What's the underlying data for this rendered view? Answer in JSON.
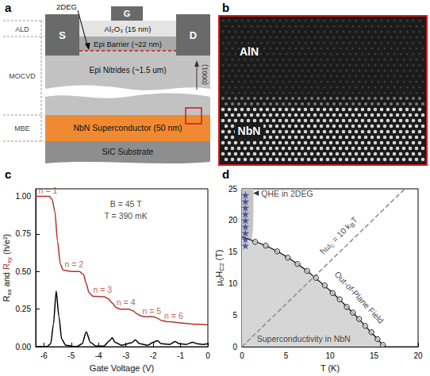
{
  "diagram": {
    "label": "a",
    "contacts": {
      "source": "S",
      "drain": "D",
      "gate": "G"
    },
    "layers": {
      "oxide": "Al₂O₃ (15 nm)",
      "barrier": "Epi Barrier (~22 nm)",
      "nitrides": "Epi Nitrides (~1.5 um)",
      "superconductor": "NbN Superconductor (50 nm)",
      "substrate": "SiC Substrate"
    },
    "channel": "2DEG",
    "growth": [
      "ALD",
      "MOCVD",
      "MBE"
    ],
    "direction": "(0001)"
  },
  "micrograph": {
    "label": "b",
    "regions": [
      "AlN",
      "NbN"
    ]
  },
  "chart_data": [
    {
      "label": "c",
      "type": "line",
      "xlabel": "Gate Voltage (V)",
      "ylabel": [
        {
          "text": "R"
        },
        {
          "text": "xx",
          "sub": true
        },
        {
          "text": " and "
        },
        {
          "text": "R",
          "color": "#b3312c"
        },
        {
          "text": "xy",
          "sub": true,
          "color": "#b3312c"
        },
        {
          "text": " (h/e²)"
        }
      ],
      "xlim": [
        -6.3,
        0
      ],
      "xticks": [
        -6,
        -5,
        -4,
        -3,
        -2,
        -1,
        0
      ],
      "ylim": [
        0,
        1.05
      ],
      "yticks": [
        {
          "value": 0,
          "label": "0.00"
        },
        {
          "value": 0.25,
          "label": "0.25"
        },
        {
          "value": 0.5,
          "label": "0.50"
        },
        {
          "value": 0.75,
          "label": "0.75"
        },
        {
          "value": 1,
          "label": "1.00"
        }
      ],
      "grid": false,
      "series": [
        {
          "color": "#000000",
          "x": [
            -6.3,
            -5.9,
            -5.75,
            -5.65,
            -5.55,
            -5.45,
            -5.35,
            -5.2,
            -4.8,
            -4.6,
            -4.45,
            -4.3,
            -4.1,
            -3.8,
            -3.6,
            -3.5,
            -3.4,
            -3.15,
            -2.8,
            -2.65,
            -2.5,
            -2.2,
            -2.0,
            -1.85,
            -1.7,
            -1.4,
            -1.2,
            -1.05,
            -0.8,
            -0.55,
            -0.4,
            -0.2,
            0
          ],
          "values": [
            0,
            0,
            0.02,
            0.15,
            0.37,
            0.2,
            0.05,
            0.01,
            0,
            0.02,
            0.1,
            0.03,
            0.005,
            0.005,
            0.04,
            0.06,
            0.03,
            0.01,
            0.025,
            0.045,
            0.02,
            0.01,
            0.03,
            0.04,
            0.02,
            0.015,
            0.035,
            0.02,
            0.015,
            0.03,
            0.02,
            0.015,
            0.02
          ]
        },
        {
          "color": "#b3312c",
          "x": [
            -6.3,
            -5.8,
            -5.7,
            -5.6,
            -5.5,
            -5.4,
            -5.3,
            -5.0,
            -4.7,
            -4.55,
            -4.45,
            -4.35,
            -4.2,
            -3.8,
            -3.65,
            -3.5,
            -3.35,
            -3.2,
            -2.9,
            -2.75,
            -2.6,
            -2.45,
            -2.3,
            -2.0,
            -1.85,
            -1.7,
            -1.5,
            -1.3,
            -1.1,
            -0.8,
            -0.5,
            -0.2,
            0
          ],
          "values": [
            1.0,
            1.0,
            0.98,
            0.9,
            0.7,
            0.55,
            0.51,
            0.5,
            0.5,
            0.48,
            0.42,
            0.36,
            0.335,
            0.333,
            0.32,
            0.29,
            0.26,
            0.25,
            0.25,
            0.24,
            0.22,
            0.205,
            0.2,
            0.2,
            0.19,
            0.175,
            0.167,
            0.165,
            0.16,
            0.155,
            0.15,
            0.148,
            0.145
          ]
        }
      ],
      "annotations": [
        {
          "text": "B = 45 T",
          "x": -3.0,
          "y": 0.95
        },
        {
          "text": "T = 390 mK",
          "x": -3.0,
          "y": 0.87
        },
        {
          "text": "n = 1",
          "x": -5.85,
          "y": 1.04,
          "color": "#b3312c"
        },
        {
          "text": "n = 2",
          "x": -4.9,
          "y": 0.55,
          "color": "#b3312c"
        },
        {
          "text": "n = 3",
          "x": -3.85,
          "y": 0.38,
          "color": "#b3312c"
        },
        {
          "text": "n = 4",
          "x": -3.0,
          "y": 0.295,
          "color": "#b3312c"
        },
        {
          "text": "n = 5",
          "x": -2.05,
          "y": 0.24,
          "color": "#b3312c"
        },
        {
          "text": "n = 6",
          "x": -1.25,
          "y": 0.205,
          "color": "#b3312c"
        }
      ]
    },
    {
      "label": "d",
      "type": "line",
      "xlabel": "T (K)",
      "ylabel": [
        {
          "text": "μ"
        },
        {
          "text": "0",
          "sub": true
        },
        {
          "text": "H"
        },
        {
          "text": "C2",
          "sub": true
        },
        {
          "text": " (T)"
        }
      ],
      "xlim": [
        0,
        20
      ],
      "xticks": [
        0,
        5,
        10,
        15,
        20
      ],
      "ylim": [
        0,
        25
      ],
      "yticks": [
        0,
        5,
        10,
        15,
        20,
        25
      ],
      "grid": false,
      "series": [
        {
          "type": "region",
          "color": "#c4c4c4",
          "x": [
            0,
            0.35,
            0.75,
            1.05,
            1.25,
            1.3,
            1.3,
            0
          ],
          "values": [
            13.2,
            13.6,
            14.6,
            16.2,
            18.5,
            21,
            25,
            25
          ]
        },
        {
          "type": "area",
          "color": "#d6d6d6",
          "x": [
            0,
            1,
            2,
            3,
            4,
            5,
            6,
            7,
            8,
            9,
            10,
            11,
            12,
            13,
            14,
            15,
            16,
            16.3
          ],
          "values": [
            17.4,
            16.9,
            16.4,
            15.8,
            15.1,
            14.3,
            13.4,
            12.4,
            11.3,
            10.1,
            8.9,
            7.6,
            6.2,
            4.8,
            3.3,
            1.8,
            0.3,
            0
          ]
        },
        {
          "type": "line",
          "line_style": "dashed",
          "color": "#8c8c8c",
          "x": [
            0,
            18.5
          ],
          "values": [
            0,
            25
          ]
        },
        {
          "type": "scatter",
          "marker": "circle",
          "color": "#000000",
          "x": [
            1.5,
            2.7,
            4,
            5.2,
            6.3,
            7.4,
            8.4,
            9.4,
            10.3,
            11.1,
            11.9,
            12.6,
            13.3,
            14,
            14.7,
            15.4,
            16
          ],
          "values": [
            16.6,
            16.0,
            15.1,
            14.1,
            13.1,
            12.0,
            10.9,
            9.7,
            8.5,
            7.5,
            6.3,
            5.4,
            4.4,
            3.3,
            2.3,
            1.2,
            0.3
          ]
        },
        {
          "type": "scatter",
          "marker": "star",
          "color": "#2b3a9e",
          "x": [
            0.39,
            0.39,
            0.39,
            0.39,
            0.39,
            0.39,
            0.39,
            0.39,
            0.39
          ],
          "values": [
            16,
            17,
            18,
            19,
            20,
            21,
            22,
            23,
            24
          ]
        }
      ],
      "annotations": [
        {
          "text": "QHE in 2DEG",
          "x": 1.6,
          "y": 24.3
        },
        {
          "text": [
            {
              "text": "ħω"
            },
            {
              "text": "c",
              "sub": true
            },
            {
              "text": " = 10 k"
            },
            {
              "text": "B",
              "sub": true
            },
            {
              "text": "T"
            }
          ],
          "x": 11.0,
          "y": 17.6
        },
        {
          "text": "Out-of-Plane Field",
          "x": 13.3,
          "y": 7.8
        },
        {
          "text": "Superconductivity in NbN",
          "x": 7.0,
          "y": 1.3
        }
      ]
    }
  ]
}
